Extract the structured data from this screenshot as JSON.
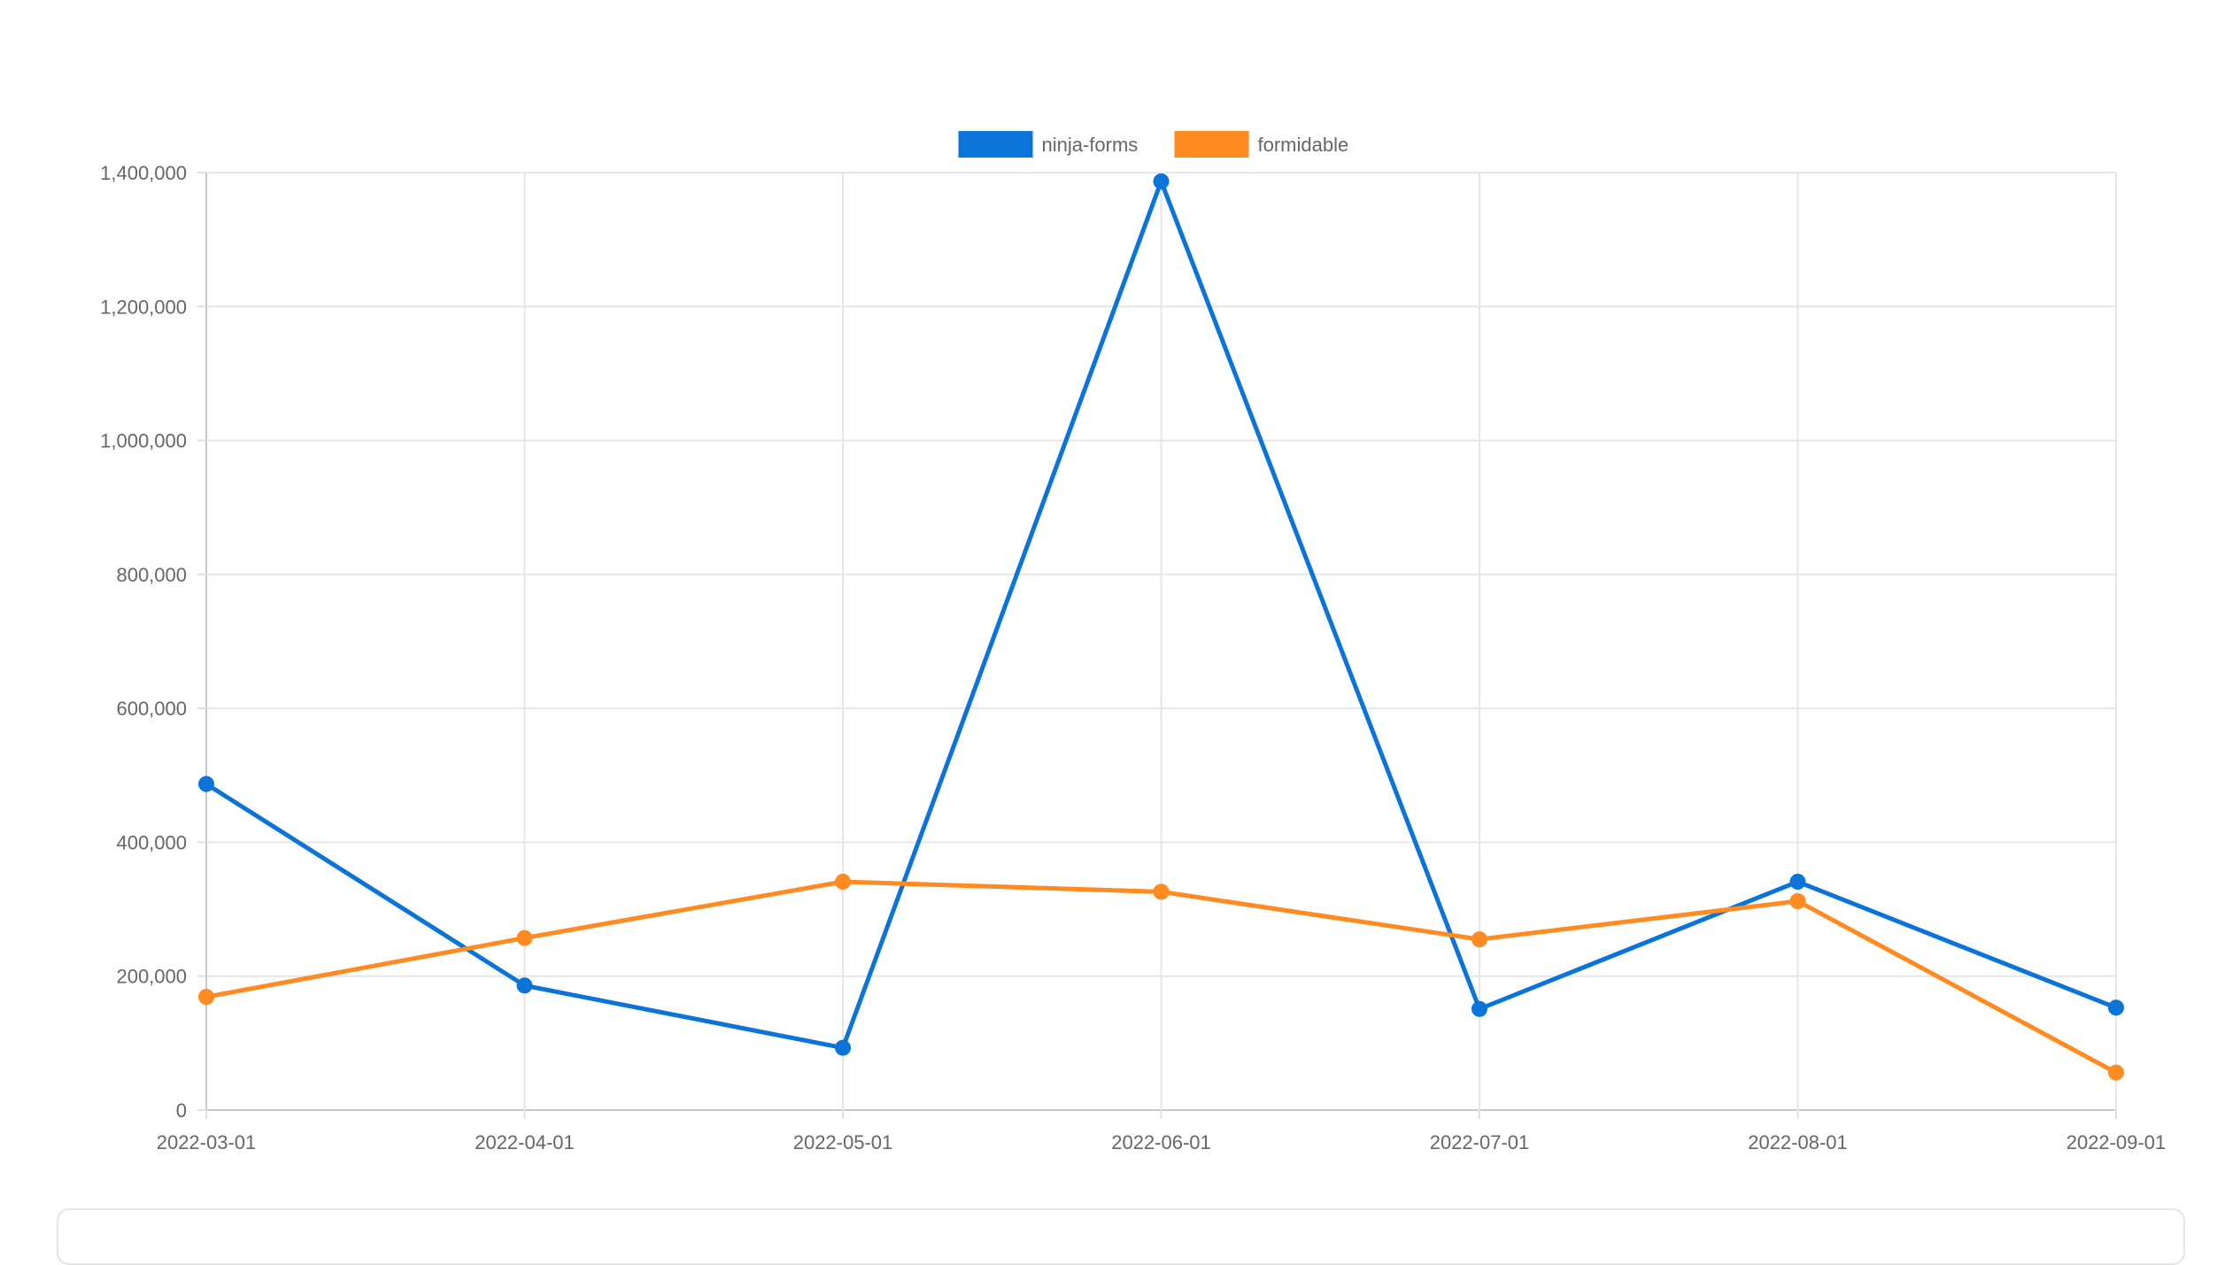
{
  "chart_data": {
    "type": "line",
    "title": "",
    "xlabel": "",
    "ylabel": "",
    "x": [
      "2022-03-01",
      "2022-04-01",
      "2022-05-01",
      "2022-06-01",
      "2022-07-01",
      "2022-08-01",
      "2022-09-01"
    ],
    "ylim": [
      0,
      1400000
    ],
    "yticks": [
      0,
      200000,
      400000,
      600000,
      800000,
      1000000,
      1200000,
      1400000
    ],
    "grid": true,
    "legend_position": "top-center",
    "series": [
      {
        "name": "ninja-forms",
        "color": "#0b74d8",
        "values": [
          487000,
          186000,
          93000,
          1387000,
          151000,
          341000,
          153000
        ]
      },
      {
        "name": "formidable",
        "color": "#ff8a1f",
        "values": [
          169000,
          257000,
          341000,
          326000,
          255000,
          312000,
          56000
        ]
      }
    ]
  }
}
